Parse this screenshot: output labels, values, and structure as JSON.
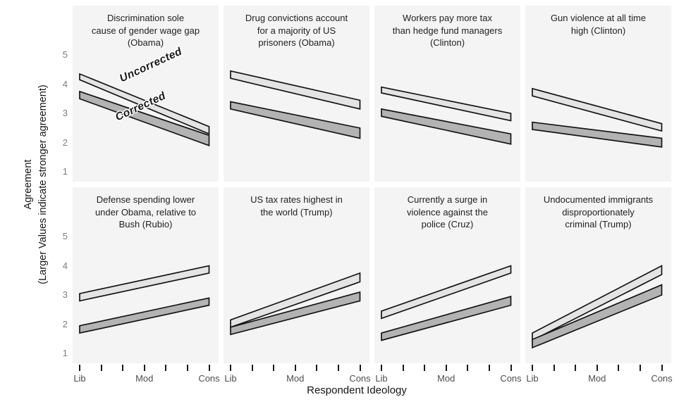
{
  "figure": {
    "y_axis": {
      "title_line1": "Agreement",
      "title_line2": "(Larger Values indicate stronger agreement)",
      "tick_labels": [
        "5",
        "4",
        "3",
        "2",
        "1"
      ]
    },
    "x_axis": {
      "title": "Respondent Ideology",
      "tick_labels": [
        "Lib",
        "Mod",
        "Cons"
      ]
    },
    "annotations": {
      "uncorrected_label": "Uncorrected",
      "corrected_label": "Corrected"
    }
  },
  "chart_data": {
    "type": "area",
    "subtype": "faceted-ribbon-plot",
    "title": "",
    "xlabel": "Respondent Ideology",
    "ylabel": "Agreement (Larger Values indicate stronger agreement)",
    "x_categories": [
      "Lib",
      "Mod",
      "Cons"
    ],
    "x_tick_count_per_panel": 7,
    "ylim": [
      1,
      5
    ],
    "y_ticks": [
      5,
      4,
      3,
      2,
      1
    ],
    "grid": false,
    "legend_position": "annotated-in-first-panel",
    "series_names": [
      "Uncorrected",
      "Corrected"
    ],
    "colors": {
      "uncorrected_fill": "#e4e4e4",
      "corrected_fill": "#b3b3b3",
      "outline": "#141414",
      "panel_bg": "#f4f4f4"
    },
    "band_note": "Each band is [lower,upper] agreement value at Lib (left) and Cons (right) ends; bands are straight ribbons",
    "panels": [
      {
        "title_lines": [
          "Discrimination sole",
          "cause of gender wage gap",
          "(Obama)"
        ],
        "uncorrected": {
          "lib": [
            4.15,
            4.35
          ],
          "cons": [
            2.3,
            2.55
          ]
        },
        "corrected": {
          "lib": [
            3.5,
            3.75
          ],
          "cons": [
            1.9,
            2.25
          ]
        }
      },
      {
        "title_lines": [
          "Drug convictions account",
          "for a majority of US",
          "prisoners (Obama)"
        ],
        "uncorrected": {
          "lib": [
            4.2,
            4.45
          ],
          "cons": [
            3.15,
            3.45
          ]
        },
        "corrected": {
          "lib": [
            3.15,
            3.4
          ],
          "cons": [
            2.15,
            2.5
          ]
        }
      },
      {
        "title_lines": [
          "Workers pay more tax",
          "than hedge fund managers",
          "(Clinton)"
        ],
        "uncorrected": {
          "lib": [
            3.7,
            3.9
          ],
          "cons": [
            2.75,
            3.0
          ]
        },
        "corrected": {
          "lib": [
            2.9,
            3.15
          ],
          "cons": [
            1.95,
            2.3
          ]
        }
      },
      {
        "title_lines": [
          "Gun violence at all time",
          "high (Clinton)"
        ],
        "uncorrected": {
          "lib": [
            3.6,
            3.85
          ],
          "cons": [
            2.4,
            2.65
          ]
        },
        "corrected": {
          "lib": [
            2.45,
            2.7
          ],
          "cons": [
            1.85,
            2.15
          ]
        }
      },
      {
        "title_lines": [
          "Defense spending lower",
          "under Obama, relative to",
          "Bush (Rubio)"
        ],
        "uncorrected": {
          "lib": [
            2.8,
            3.05
          ],
          "cons": [
            3.75,
            4.0
          ]
        },
        "corrected": {
          "lib": [
            1.7,
            1.95
          ],
          "cons": [
            2.65,
            2.9
          ]
        }
      },
      {
        "title_lines": [
          "US tax rates highest in",
          "the world (Trump)"
        ],
        "uncorrected": {
          "lib": [
            1.9,
            2.15
          ],
          "cons": [
            3.45,
            3.75
          ]
        },
        "corrected": {
          "lib": [
            1.65,
            1.9
          ],
          "cons": [
            2.8,
            3.1
          ]
        }
      },
      {
        "title_lines": [
          "Currently a surge in",
          "violence against the",
          "police (Cruz)"
        ],
        "uncorrected": {
          "lib": [
            2.2,
            2.45
          ],
          "cons": [
            3.75,
            4.0
          ]
        },
        "corrected": {
          "lib": [
            1.45,
            1.7
          ],
          "cons": [
            2.65,
            2.95
          ]
        }
      },
      {
        "title_lines": [
          "Undocumented immigrants",
          "disproportionately",
          "criminal (Trump)"
        ],
        "uncorrected": {
          "lib": [
            1.45,
            1.7
          ],
          "cons": [
            3.7,
            4.0
          ]
        },
        "corrected": {
          "lib": [
            1.2,
            1.48
          ],
          "cons": [
            3.0,
            3.35
          ]
        }
      }
    ]
  }
}
